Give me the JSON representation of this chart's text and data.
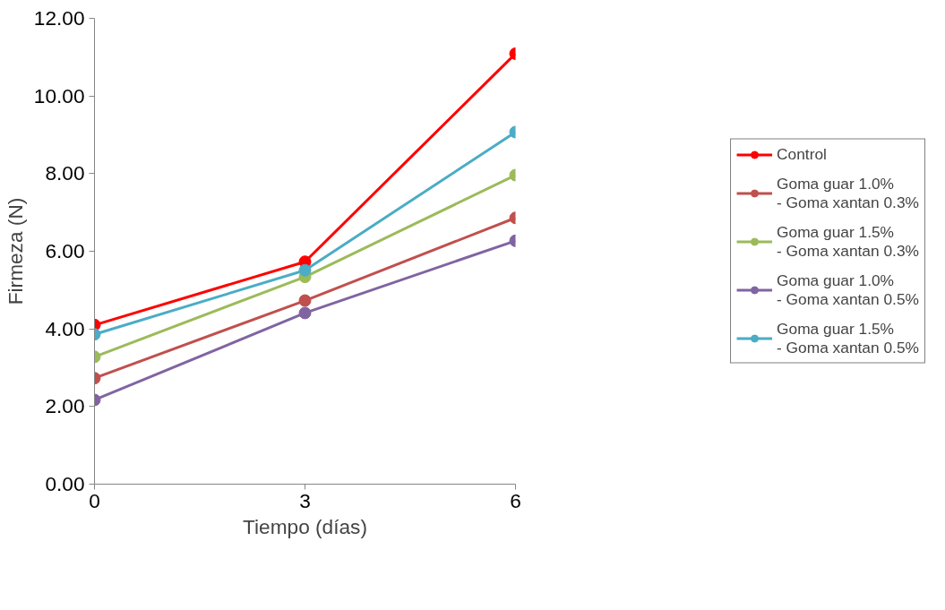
{
  "chart_data": {
    "type": "line",
    "xlabel": "Tiempo (días)",
    "ylabel": "Firmeza (N)",
    "x": [
      0,
      3,
      6
    ],
    "series": [
      {
        "name": "Control",
        "color": "#ff0000",
        "values": [
          4.1,
          5.73,
          11.09
        ]
      },
      {
        "name": "Goma guar 1.0% - Goma xantan 0.3%",
        "color": "#c0504d",
        "values": [
          2.73,
          4.73,
          6.86
        ]
      },
      {
        "name": "Goma guar 1.5% - Goma xantan 0.3%",
        "color": "#9bbb59",
        "values": [
          3.28,
          5.34,
          7.96
        ]
      },
      {
        "name": "Goma guar 1.0% - Goma xantan 0.5%",
        "color": "#8064a2",
        "values": [
          2.17,
          4.41,
          6.27
        ]
      },
      {
        "name": "Goma guar 1.5% - Goma xantan 0.5%",
        "color": "#4bacc6",
        "values": [
          3.86,
          5.51,
          9.07
        ]
      }
    ],
    "xlim": [
      0,
      6
    ],
    "xticks": [
      0,
      3,
      6
    ],
    "ylim": [
      0,
      12
    ],
    "yticks": [
      {
        "value": 0,
        "label": "0.00"
      },
      {
        "value": 2,
        "label": "2.00"
      },
      {
        "value": 4,
        "label": "4.00"
      },
      {
        "value": 6,
        "label": "6.00"
      },
      {
        "value": 8,
        "label": "8.00"
      },
      {
        "value": 10,
        "label": "10.00"
      },
      {
        "value": 12,
        "label": "12.00"
      }
    ],
    "grid": false,
    "legend": "right",
    "marker": "circle",
    "line_style": "solid"
  }
}
